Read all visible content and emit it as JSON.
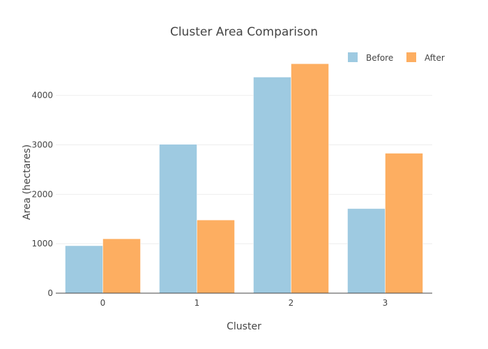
{
  "chart_data": {
    "type": "bar",
    "title": "Cluster Area Comparison",
    "xlabel": "Cluster",
    "ylabel": "Area (hectares)",
    "categories": [
      "0",
      "1",
      "2",
      "3"
    ],
    "ylim": [
      0,
      4800
    ],
    "yticks": [
      0,
      1000,
      2000,
      3000,
      4000
    ],
    "grid": true,
    "legend_position": "top-right",
    "series": [
      {
        "name": "Before",
        "color": "#9ecae1",
        "values": [
          960,
          3010,
          4370,
          1710
        ]
      },
      {
        "name": "After",
        "color": "#fdae61",
        "values": [
          1100,
          1480,
          4640,
          2830
        ]
      }
    ]
  }
}
